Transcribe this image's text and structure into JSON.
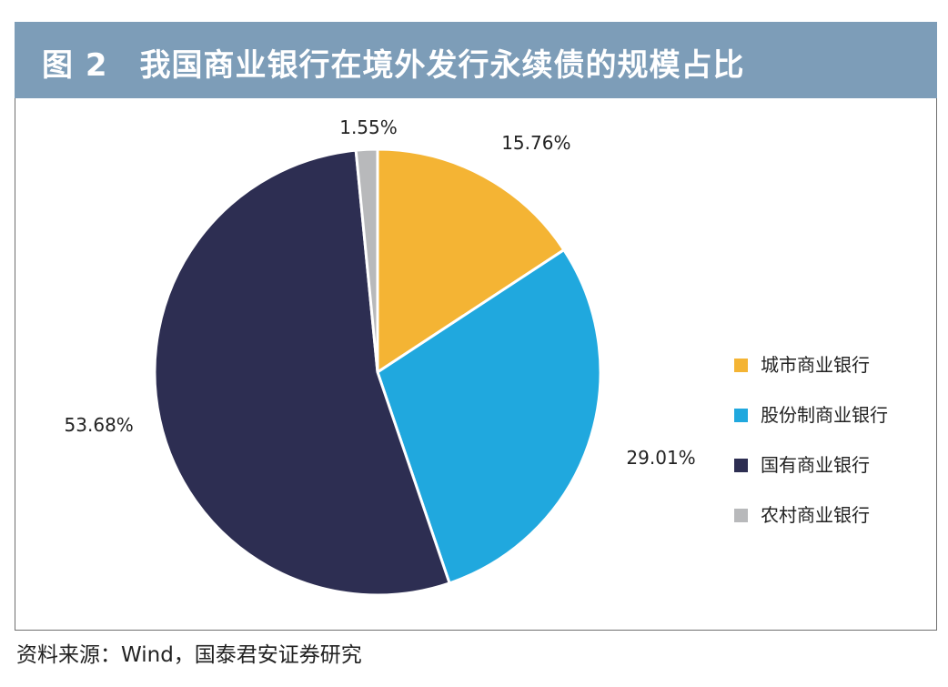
{
  "header": {
    "title": "图 2　我国商业银行在境外发行永续债的规模占比"
  },
  "chart_data": {
    "type": "pie",
    "title": "图 2　我国商业银行在境外发行永续债的规模占比",
    "slices": [
      {
        "label": "城市商业银行",
        "value": 15.76,
        "value_label": "15.76%",
        "color": "#f4b434"
      },
      {
        "label": "股份制商业银行",
        "value": 29.01,
        "value_label": "29.01%",
        "color": "#20a8de"
      },
      {
        "label": "国有商业银行",
        "value": 53.68,
        "value_label": "53.68%",
        "color": "#2d2e52"
      },
      {
        "label": "农村商业银行",
        "value": 1.55,
        "value_label": "1.55%",
        "color": "#b8b9bb"
      }
    ],
    "start_position": "12 o'clock",
    "direction": "clockwise",
    "legend_position": "right"
  },
  "footer": {
    "source": "资料来源：Wind，国泰君安证券研究"
  }
}
